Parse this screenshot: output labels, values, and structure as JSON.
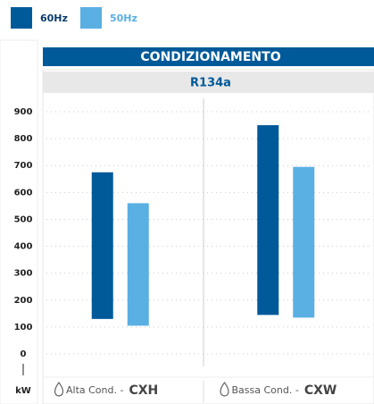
{
  "chart_data": {
    "type": "range-bar",
    "title": "CONDIZIONAMENTO",
    "subtitle": "R134a",
    "y_label": "kW",
    "categories": [
      "CXH",
      "CXW"
    ],
    "category_notes": [
      "Alta Cond. -",
      "Bassa Cond. -"
    ],
    "series": [
      {
        "name": "60Hz",
        "color": "#005a9a",
        "values": [
          [
            130,
            675
          ],
          [
            145,
            850
          ]
        ]
      },
      {
        "name": "50Hz",
        "color": "#5aafe3",
        "values": [
          [
            105,
            560
          ],
          [
            135,
            695
          ]
        ]
      }
    ],
    "ylim": [
      0,
      900
    ],
    "yticks": [
      0,
      100,
      200,
      300,
      400,
      500,
      600,
      700,
      800,
      900
    ],
    "grid": true
  }
}
